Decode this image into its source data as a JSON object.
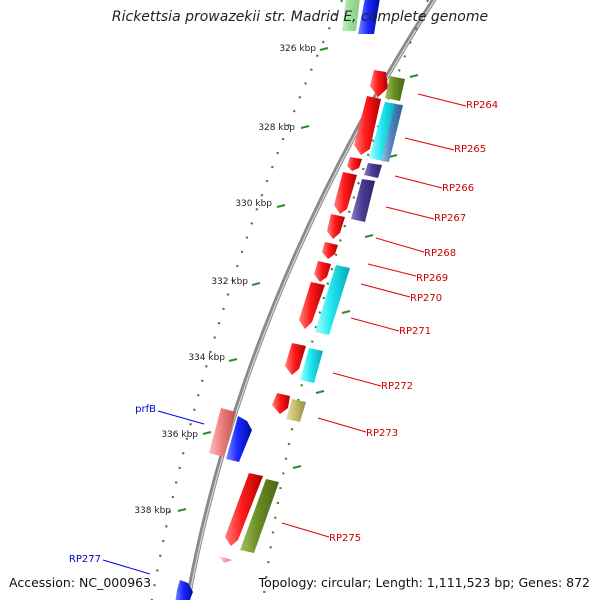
{
  "title": "Rickettsia prowazekii str. Madrid E, complete genome",
  "footer": {
    "accession": "Accession: NC_000963",
    "summary": "Topology: circular; Length: 1,111,523 bp; Genes: 872"
  },
  "colors": {
    "backbone": "#8c8c8c",
    "tick": "#2e8b2e",
    "gene_red": "#ee1111",
    "gene_blue": "#1122ee",
    "label_red": "#cc0000",
    "label_blue": "#0000cc"
  },
  "chart_data": {
    "type": "genome_map",
    "ticks": [
      "326 kbp",
      "328 kbp",
      "330 kbp",
      "332 kbp",
      "334 kbp",
      "336 kbp",
      "338 kbp"
    ],
    "gene_labels": [
      {
        "text": "RP264",
        "color": "red"
      },
      {
        "text": "RP265",
        "color": "red"
      },
      {
        "text": "RP266",
        "color": "red"
      },
      {
        "text": "RP267",
        "color": "red"
      },
      {
        "text": "RP268",
        "color": "red"
      },
      {
        "text": "RP269",
        "color": "red"
      },
      {
        "text": "RP270",
        "color": "red"
      },
      {
        "text": "RP271",
        "color": "red"
      },
      {
        "text": "RP272",
        "color": "red"
      },
      {
        "text": "RP273",
        "color": "red"
      },
      {
        "text": "RP275",
        "color": "red"
      },
      {
        "text": "prfB",
        "color": "blue"
      },
      {
        "text": "RP277",
        "color": "blue"
      }
    ]
  }
}
